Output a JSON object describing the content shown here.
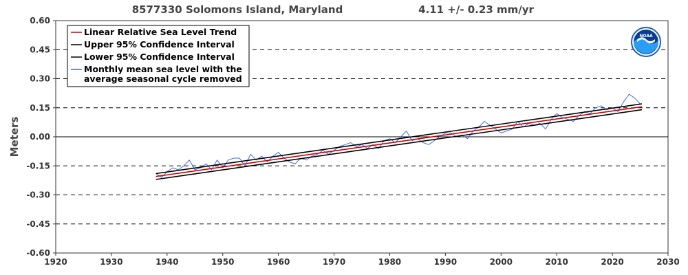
{
  "header": {
    "station": "8577330 Solomons Island, Maryland",
    "rate": "4.11 +/-  0.23 mm/yr"
  },
  "chart_data": {
    "type": "line",
    "ylabel": "Meters",
    "xlim": [
      1920,
      2030
    ],
    "ylim": [
      -0.6,
      0.6
    ],
    "x_ticks": [
      1920,
      1930,
      1940,
      1950,
      1960,
      1970,
      1980,
      1990,
      2000,
      2010,
      2020,
      2030
    ],
    "y_ticks": [
      "0.60",
      "0.45",
      "0.30",
      "0.15",
      "0.00",
      "-0.15",
      "-0.30",
      "-0.45",
      "-0.60"
    ],
    "grid": "dashed horizontal",
    "legend_position": "top-left",
    "legend": [
      "Linear Relative Sea Level Trend",
      "Upper 95% Confidence Interval",
      "Lower 95% Confidence Interval",
      "Monthly mean sea level with the",
      "average seasonal cycle removed"
    ],
    "series": [
      {
        "name": "Linear Relative Sea Level Trend",
        "color": "#cc0000",
        "x": [
          1938.0,
          2025.3
        ],
        "y": [
          -0.205,
          0.155
        ]
      },
      {
        "name": "Upper 95% Confidence Interval",
        "color": "#000000",
        "x": [
          1938.0,
          2025.3
        ],
        "y": [
          -0.19,
          0.17
        ]
      },
      {
        "name": "Lower 95% Confidence Interval",
        "color": "#000000",
        "x": [
          1938.0,
          2025.3
        ],
        "y": [
          -0.22,
          0.14
        ]
      },
      {
        "name": "Monthly mean sea level with the average seasonal cycle removed",
        "color": "#4169e1",
        "x": [
          1938,
          1939,
          1940,
          1941,
          1942,
          1943,
          1944,
          1945,
          1946,
          1947,
          1948,
          1949,
          1950,
          1951,
          1952,
          1953,
          1954,
          1955,
          1956,
          1957,
          1958,
          1959,
          1960,
          1961,
          1962,
          1963,
          1964,
          1965,
          1966,
          1967,
          1968,
          1969,
          1970,
          1971,
          1972,
          1973,
          1974,
          1975,
          1976,
          1977,
          1978,
          1979,
          1980,
          1981,
          1982,
          1983,
          1984,
          1985,
          1986,
          1987,
          1988,
          1989,
          1990,
          1991,
          1992,
          1993,
          1994,
          1995,
          1996,
          1997,
          1998,
          1999,
          2000,
          2001,
          2002,
          2003,
          2004,
          2005,
          2006,
          2007,
          2008,
          2009,
          2010,
          2011,
          2012,
          2013,
          2014,
          2015,
          2016,
          2017,
          2018,
          2019,
          2020,
          2021,
          2022,
          2023,
          2024,
          2025
        ],
        "y": [
          -0.19,
          -0.21,
          -0.18,
          -0.16,
          -0.17,
          -0.15,
          -0.12,
          -0.17,
          -0.16,
          -0.14,
          -0.17,
          -0.12,
          -0.16,
          -0.12,
          -0.11,
          -0.11,
          -0.15,
          -0.09,
          -0.12,
          -0.1,
          -0.13,
          -0.1,
          -0.08,
          -0.11,
          -0.13,
          -0.14,
          -0.11,
          -0.12,
          -0.1,
          -0.09,
          -0.07,
          -0.09,
          -0.07,
          -0.05,
          -0.04,
          -0.03,
          -0.05,
          -0.04,
          -0.06,
          -0.04,
          -0.06,
          -0.02,
          -0.01,
          -0.03,
          0.0,
          0.03,
          -0.02,
          -0.01,
          -0.03,
          -0.04,
          -0.02,
          0.0,
          0.02,
          0.02,
          0.0,
          0.01,
          -0.01,
          0.03,
          0.05,
          0.08,
          0.06,
          0.04,
          0.02,
          0.03,
          0.04,
          0.08,
          0.05,
          0.07,
          0.06,
          0.07,
          0.04,
          0.09,
          0.12,
          0.1,
          0.09,
          0.08,
          0.11,
          0.13,
          0.12,
          0.15,
          0.16,
          0.14,
          0.15,
          0.13,
          0.18,
          0.22,
          0.2,
          0.17
        ]
      }
    ]
  }
}
